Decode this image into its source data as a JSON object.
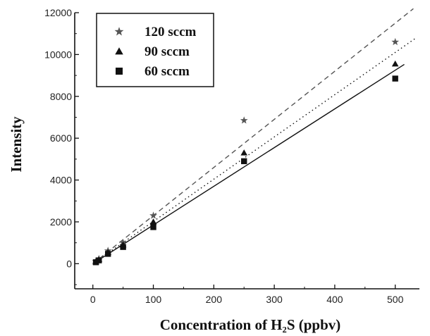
{
  "chart_data": {
    "type": "scatter",
    "xlabel": "Concentration of H₂S (ppbv)",
    "ylabel": "Intensity",
    "xlim": [
      -30,
      540
    ],
    "ylim": [
      -1200,
      12000
    ],
    "x_ticks": [
      0,
      100,
      200,
      300,
      400,
      500
    ],
    "y_ticks": [
      0,
      2000,
      4000,
      6000,
      8000,
      10000,
      12000
    ],
    "legend_position": "top-left",
    "series": [
      {
        "name": "120 sccm",
        "marker": "star",
        "color": "#555555",
        "points": [
          [
            5,
            120
          ],
          [
            10,
            230
          ],
          [
            25,
            620
          ],
          [
            50,
            1000
          ],
          [
            100,
            2300
          ],
          [
            250,
            6850
          ],
          [
            500,
            10600
          ]
        ],
        "fit": {
          "slope": 23.0,
          "intercept": 0,
          "style": "dashed",
          "x_range": [
            0,
            530
          ]
        }
      },
      {
        "name": "90 sccm",
        "marker": "triangle",
        "color": "#111111",
        "points": [
          [
            5,
            90
          ],
          [
            10,
            200
          ],
          [
            25,
            540
          ],
          [
            50,
            900
          ],
          [
            100,
            2000
          ],
          [
            250,
            5300
          ],
          [
            500,
            9550
          ]
        ],
        "fit": {
          "slope": 20.2,
          "intercept": 0,
          "style": "dotted",
          "x_range": [
            0,
            535
          ]
        }
      },
      {
        "name": "60 sccm",
        "marker": "square",
        "color": "#111111",
        "points": [
          [
            5,
            70
          ],
          [
            10,
            160
          ],
          [
            25,
            470
          ],
          [
            50,
            800
          ],
          [
            100,
            1750
          ],
          [
            250,
            4900
          ],
          [
            500,
            8850
          ]
        ],
        "fit": {
          "slope": 18.5,
          "intercept": 0,
          "style": "solid",
          "x_range": [
            0,
            515
          ]
        }
      }
    ]
  }
}
